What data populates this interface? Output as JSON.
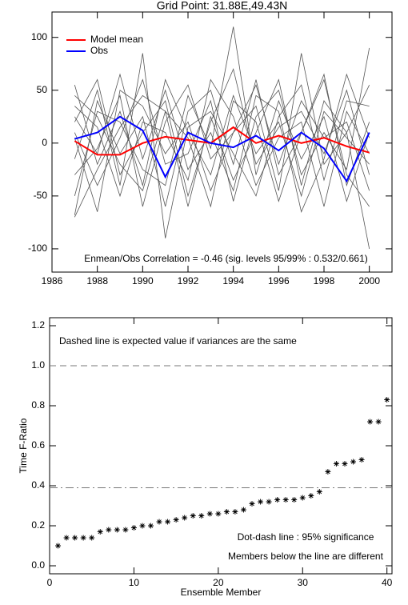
{
  "chart_data": [
    {
      "type": "line",
      "title": "Grid Point: 31.88E,49.43N",
      "x": [
        1987,
        1988,
        1989,
        1990,
        1991,
        1992,
        1993,
        1994,
        1995,
        1996,
        1997,
        1998,
        1999,
        2000
      ],
      "xlim": [
        1986,
        2001
      ],
      "xticks": [
        1986,
        1988,
        1990,
        1992,
        1994,
        1996,
        1998,
        2000
      ],
      "ylim": [
        -122,
        124
      ],
      "yticks": [
        -100,
        -50,
        0,
        50,
        100
      ],
      "annotations": [
        "Enmean/Obs Correlation = -0.46 (sig. levels 95/99% : 0.532/0.661)"
      ],
      "legend": "upper left",
      "series": [
        {
          "color": "#555555",
          "values": [
            55,
            -20,
            30,
            -40,
            60,
            10,
            -30,
            45,
            -10,
            20,
            -50,
            30,
            5,
            -20
          ]
        },
        {
          "color": "#555555",
          "values": [
            -68,
            40,
            -10,
            25,
            -60,
            30,
            50,
            -20,
            60,
            -30,
            10,
            65,
            -40,
            20
          ]
        },
        {
          "color": "#555555",
          "values": [
            20,
            60,
            -30,
            10,
            40,
            -50,
            20,
            70,
            -20,
            15,
            30,
            -10,
            50,
            -30
          ]
        },
        {
          "color": "#555555",
          "values": [
            -30,
            -5,
            45,
            -60,
            20,
            55,
            -15,
            10,
            35,
            -45,
            85,
            -20,
            10,
            55
          ]
        },
        {
          "color": "#555555",
          "values": [
            10,
            -40,
            5,
            60,
            -20,
            -10,
            40,
            -55,
            25,
            50,
            -30,
            10,
            -25,
            90
          ]
        },
        {
          "color": "#555555",
          "values": [
            35,
            15,
            -50,
            20,
            10,
            -35,
            60,
            25,
            -40,
            5,
            20,
            -60,
            30,
            -10
          ]
        },
        {
          "color": "#555555",
          "values": [
            -50,
            30,
            20,
            -25,
            -40,
            45,
            -5,
            110,
            -30,
            40,
            -15,
            25,
            -55,
            10
          ]
        },
        {
          "color": "#555555",
          "values": [
            5,
            -65,
            50,
            35,
            -10,
            20,
            -45,
            10,
            55,
            -20,
            40,
            5,
            20,
            -45
          ]
        },
        {
          "color": "#555555",
          "values": [
            45,
            25,
            -20,
            -45,
            30,
            -60,
            25,
            -35,
            10,
            60,
            -40,
            40,
            10,
            -100
          ]
        },
        {
          "color": "#555555",
          "values": [
            -15,
            50,
            -40,
            85,
            -90,
            15,
            30,
            -10,
            -50,
            25,
            55,
            -35,
            40,
            35
          ]
        },
        {
          "color": "#555555",
          "values": [
            -70,
            -25,
            15,
            45,
            30,
            5,
            -60,
            40,
            20,
            -55,
            10,
            60,
            -30,
            -60
          ]
        },
        {
          "color": "#555555",
          "values": [
            25,
            -10,
            65,
            -15,
            50,
            -25,
            10,
            -45,
            45,
            30,
            -65,
            -15,
            65,
            5
          ]
        },
        {
          "name": "Model mean",
          "color": "#ff0000",
          "values": [
            2,
            -11,
            -11,
            0,
            6,
            3,
            0,
            15,
            0,
            7,
            0,
            5,
            -3,
            -9
          ]
        },
        {
          "name": "Obs",
          "color": "#0000ff",
          "values": [
            4,
            10,
            25,
            12,
            -32,
            10,
            0,
            -4,
            7,
            -7,
            10,
            -5,
            -36,
            10
          ]
        }
      ]
    },
    {
      "type": "scatter",
      "x_label": "Ensemble Member",
      "y_label": "Time F-Ratio",
      "x": [
        1,
        2,
        3,
        4,
        5,
        6,
        7,
        8,
        9,
        10,
        11,
        12,
        13,
        14,
        15,
        16,
        17,
        18,
        19,
        20,
        21,
        22,
        23,
        24,
        25,
        26,
        27,
        28,
        29,
        30,
        31,
        32,
        33,
        34,
        35,
        36,
        37,
        38,
        39,
        40
      ],
      "values": [
        0.1,
        0.14,
        0.14,
        0.14,
        0.14,
        0.17,
        0.18,
        0.18,
        0.18,
        0.19,
        0.2,
        0.2,
        0.22,
        0.22,
        0.23,
        0.24,
        0.25,
        0.25,
        0.26,
        0.26,
        0.27,
        0.27,
        0.28,
        0.31,
        0.32,
        0.32,
        0.33,
        0.33,
        0.33,
        0.34,
        0.35,
        0.37,
        0.47,
        0.51,
        0.51,
        0.52,
        0.53,
        0.72,
        0.72,
        0.83
      ],
      "color": "#000000",
      "xlim": [
        0,
        40.6
      ],
      "xticks": [
        0,
        10,
        20,
        30,
        40
      ],
      "ylim": [
        -0.04,
        1.24
      ],
      "yticks": [
        {
          "value": 0,
          "label": "0.0"
        },
        0.2,
        0.4,
        0.6,
        0.8,
        {
          "value": 1,
          "label": "1.0"
        },
        1.2
      ],
      "hlines": [
        {
          "value": 1,
          "style": "dashed"
        },
        {
          "value": 0.39,
          "style": "dashdot"
        }
      ],
      "annotations": [
        "Dashed line is expected value if variances are the same",
        "Dot-dash line : 95% significance",
        "Members below the line are different"
      ]
    }
  ]
}
